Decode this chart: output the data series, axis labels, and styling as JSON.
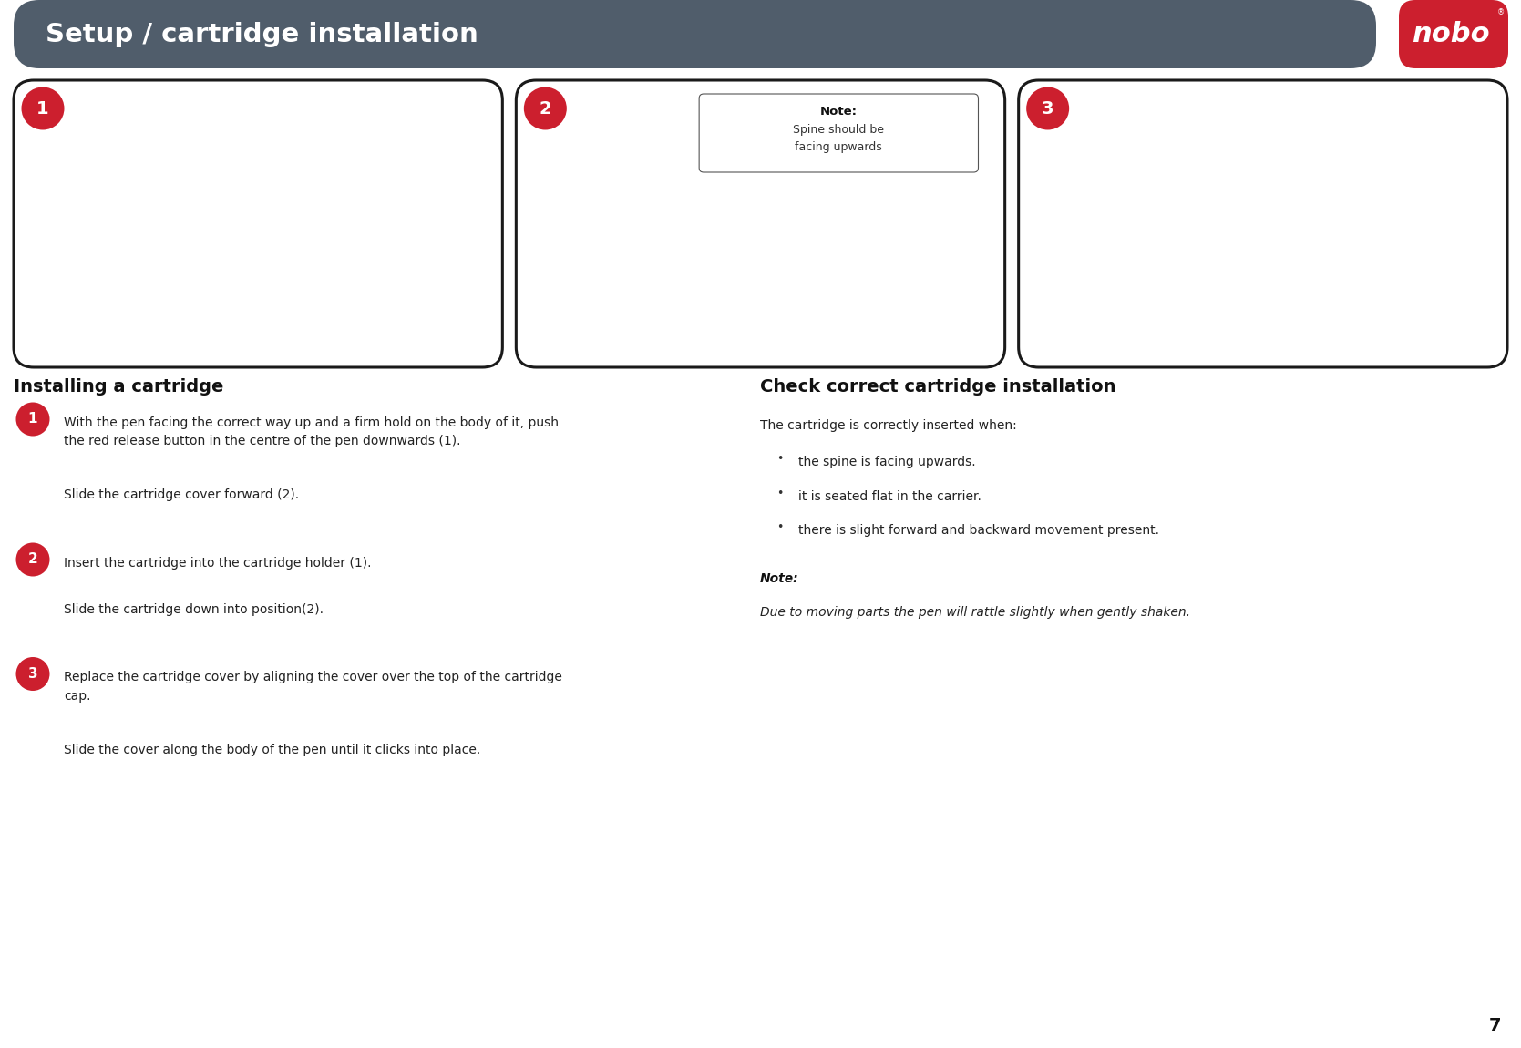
{
  "header_bg_color": "#505d6b",
  "header_text": "Setup / cartridge installation",
  "header_text_color": "#ffffff",
  "nobo_bg_color": "#cc1f2e",
  "nobo_text": "nobo",
  "page_bg_color": "#ffffff",
  "page_number": "7",
  "box_border_color": "#1a1a1a",
  "step_circle_color": "#cc1f2e",
  "step_circle_text_color": "#ffffff",
  "title_left": "Installing a cartridge",
  "title_right": "Check correct cartridge installation",
  "steps_left": [
    {
      "num": "1",
      "para1": "With the pen facing the correct way up and a firm hold on the body of it, push\nthe red release button in the centre of the pen downwards (1).",
      "para2": "Slide the cartridge cover forward (2)."
    },
    {
      "num": "2",
      "para1": "Insert the cartridge into the cartridge holder (1).",
      "para2": "Slide the cartridge down into position(2)."
    },
    {
      "num": "3",
      "para1": "Replace the cartridge cover by aligning the cover over the top of the cartridge\ncap.",
      "para2": "Slide the cover along the body of the pen until it clicks into place."
    }
  ],
  "check_intro": "The cartridge is correctly inserted when:",
  "check_bullets": [
    "the spine is facing upwards.",
    "it is seated flat in the carrier.",
    "there is slight forward and backward movement present."
  ],
  "note_label": "Note:",
  "note_text": "Due to moving parts the pen will rattle slightly when gently shaken.",
  "box_labels": [
    "1",
    "2",
    "3"
  ],
  "box_note_label": "Note:",
  "box_note_text": "Spine should be\nfacing upwards",
  "box_step_circle_color": "#cc1f2e",
  "inner_step_circle_color": "#ffffff",
  "inner_step_text_color": "#4a5568"
}
